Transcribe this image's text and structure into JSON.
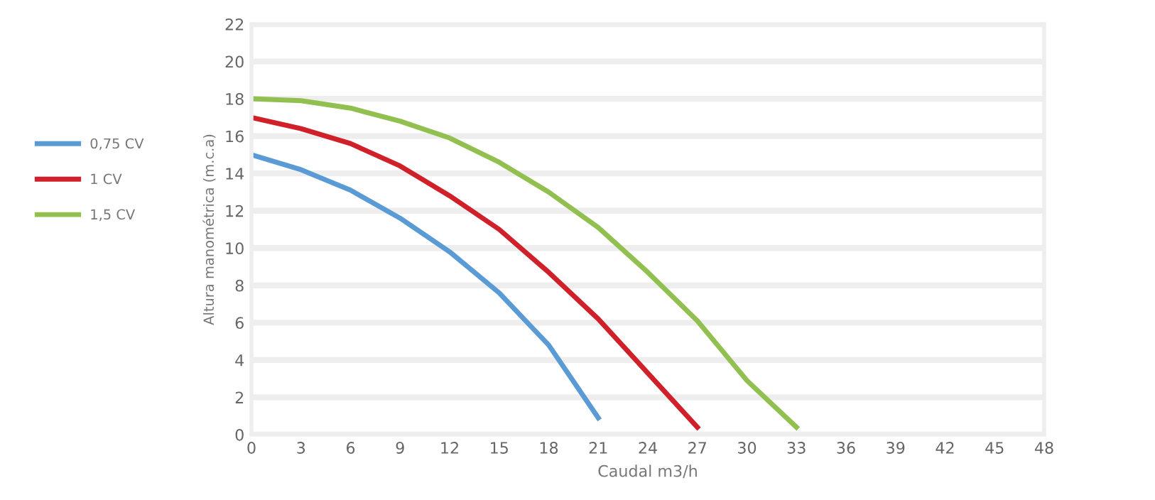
{
  "chart_data": {
    "type": "line",
    "xlabel": "Caudal m3/h",
    "ylabel": "Altura manométrica (m.c.a)",
    "xlim": [
      0,
      48
    ],
    "xticks": [
      0,
      3,
      6,
      9,
      12,
      15,
      18,
      21,
      24,
      27,
      30,
      33,
      36,
      39,
      42,
      45,
      48
    ],
    "ylim": [
      0,
      22
    ],
    "yticks": [
      0,
      2,
      4,
      6,
      8,
      10,
      12,
      14,
      16,
      18,
      20,
      22
    ],
    "grid": "y",
    "legend": "left",
    "line_style": "solid",
    "marker": "none",
    "series": [
      {
        "name": "0,75 CV",
        "color": "#5b9bd5",
        "x": [
          0,
          3,
          6,
          9,
          12,
          15,
          18,
          21
        ],
        "values": [
          15,
          14.2,
          13.1,
          11.6,
          9.8,
          7.6,
          4.8,
          0.9
        ]
      },
      {
        "name": "1 CV",
        "color": "#d0202a",
        "x": [
          0,
          3,
          6,
          9,
          12,
          15,
          18,
          21,
          24,
          27
        ],
        "values": [
          17,
          16.4,
          15.6,
          14.4,
          12.8,
          11,
          8.7,
          6.2,
          3.3,
          0.4
        ]
      },
      {
        "name": "1,5 CV",
        "color": "#92c050",
        "x": [
          0,
          3,
          6,
          9,
          12,
          15,
          18,
          21,
          24,
          27,
          30,
          33
        ],
        "values": [
          18,
          17.9,
          17.5,
          16.8,
          15.9,
          14.6,
          13,
          11.1,
          8.7,
          6.1,
          2.9,
          0.4
        ]
      }
    ]
  }
}
